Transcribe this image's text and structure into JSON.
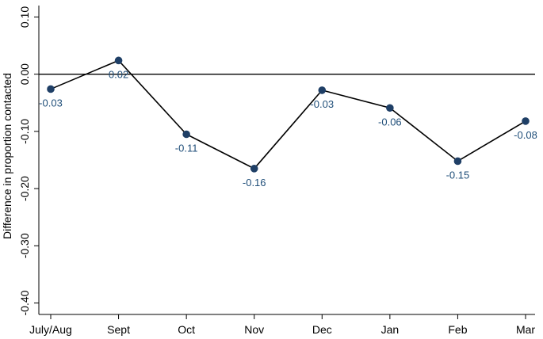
{
  "chart_data": {
    "type": "line",
    "title": "",
    "xlabel": "",
    "ylabel": "Difference in proportion contacted",
    "categories": [
      "July/Aug",
      "Sept",
      "Oct",
      "Nov",
      "Dec",
      "Jan",
      "Feb",
      "Mar"
    ],
    "values": [
      -0.026,
      0.024,
      -0.105,
      -0.165,
      -0.028,
      -0.059,
      -0.152,
      -0.082
    ],
    "data_labels": [
      "-0.03",
      "0.02",
      "-0.11",
      "-0.16",
      "-0.03",
      "-0.06",
      "-0.15",
      "-0.08"
    ],
    "yticks": [
      0.1,
      0.0,
      -0.1,
      -0.2,
      -0.3,
      -0.4
    ],
    "ytick_labels": [
      "0.10",
      "0.00",
      "-0.10",
      "-0.20",
      "-0.30",
      "-0.40"
    ],
    "ylim": [
      -0.42,
      0.12
    ],
    "reference_line": 0,
    "grid": false,
    "legend": "none",
    "colors": {
      "marker": "#1f3f66",
      "line": "#000000",
      "data_label": "#1f4e79"
    }
  }
}
